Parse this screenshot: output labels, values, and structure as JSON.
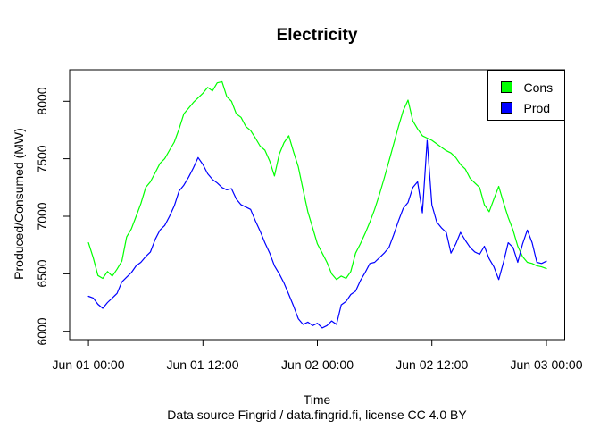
{
  "figure": {
    "title": "Electricity",
    "xlabel": "Time",
    "ylabel": "Produced/Consumed (MW)",
    "caption": "Data source Fingrid / data.fingrid.fi, license CC 4.0 BY"
  },
  "legend": {
    "position": "topright",
    "items": [
      {
        "label": "Cons",
        "color": "#00FF00"
      },
      {
        "label": "Prod",
        "color": "#0000FF"
      }
    ]
  },
  "axes": {
    "x_ticks": [
      {
        "value": 0,
        "label": "Jun 01 00:00"
      },
      {
        "value": 12,
        "label": "Jun 01 12:00"
      },
      {
        "value": 24,
        "label": "Jun 02 00:00"
      },
      {
        "value": 36,
        "label": "Jun 02 12:00"
      },
      {
        "value": 48,
        "label": "Jun 03 00:00"
      }
    ],
    "y_ticks": [
      {
        "value": 6000,
        "label": "6000"
      },
      {
        "value": 6500,
        "label": "6500"
      },
      {
        "value": 7000,
        "label": "7000"
      },
      {
        "value": 7500,
        "label": "7500"
      },
      {
        "value": 8000,
        "label": "8000"
      }
    ]
  },
  "chart_data": {
    "type": "line",
    "title": "Electricity",
    "xlabel": "Time",
    "ylabel": "Produced/Consumed (MW)",
    "caption": "Data source Fingrid / data.fingrid.fi, license CC 4.0 BY",
    "x_unit": "hours since Jun 01 00:00",
    "grid": false,
    "legend_position": "topright",
    "xlim": [
      -1.97,
      49.92
    ],
    "ylim": [
      5928,
      8274
    ],
    "x_tick_values": [
      0,
      12,
      24,
      36,
      48
    ],
    "x_tick_labels": [
      "Jun 01 00:00",
      "Jun 01 12:00",
      "Jun 02 00:00",
      "Jun 02 12:00",
      "Jun 03 00:00"
    ],
    "y_tick_values": [
      6000,
      6500,
      7000,
      7500,
      8000
    ],
    "y_tick_labels": [
      "6000",
      "6500",
      "7000",
      "7500",
      "8000"
    ],
    "x": [
      0,
      0.5,
      1,
      1.5,
      2,
      2.5,
      3,
      3.5,
      4,
      4.5,
      5,
      5.5,
      6,
      6.5,
      7,
      7.5,
      8,
      8.5,
      9,
      9.5,
      10,
      10.5,
      11,
      11.5,
      12,
      12.5,
      13,
      13.5,
      14,
      14.5,
      15,
      15.5,
      16,
      16.5,
      17,
      17.5,
      18,
      18.5,
      19,
      19.5,
      20,
      20.5,
      21,
      21.5,
      22,
      22.5,
      23,
      23.5,
      24,
      24.5,
      25,
      25.5,
      26,
      26.5,
      27,
      27.5,
      28,
      28.5,
      29,
      29.5,
      30,
      30.5,
      31,
      31.5,
      32,
      32.5,
      33,
      33.5,
      34,
      34.5,
      35,
      35.5,
      36,
      36.5,
      37,
      37.5,
      38,
      38.5,
      39,
      39.5,
      40,
      40.5,
      41,
      41.5,
      42,
      42.5,
      43,
      43.5,
      44,
      44.5,
      45,
      45.5,
      46,
      46.5,
      47,
      47.5,
      48
    ],
    "series": [
      {
        "name": "Cons",
        "color": "#00FF00",
        "values": [
          6770,
          6640,
          6485,
          6460,
          6520,
          6480,
          6540,
          6610,
          6820,
          6890,
          7000,
          7110,
          7250,
          7300,
          7380,
          7460,
          7500,
          7575,
          7645,
          7760,
          7890,
          7940,
          7990,
          8030,
          8070,
          8120,
          8090,
          8160,
          8170,
          8040,
          8000,
          7890,
          7860,
          7780,
          7745,
          7680,
          7610,
          7575,
          7480,
          7350,
          7540,
          7640,
          7700,
          7560,
          7430,
          7230,
          7040,
          6900,
          6760,
          6680,
          6600,
          6500,
          6450,
          6480,
          6460,
          6520,
          6680,
          6760,
          6850,
          6950,
          7060,
          7190,
          7330,
          7480,
          7630,
          7780,
          7920,
          8010,
          7830,
          7760,
          7700,
          7680,
          7660,
          7630,
          7600,
          7570,
          7550,
          7510,
          7450,
          7410,
          7330,
          7290,
          7250,
          7100,
          7040,
          7150,
          7260,
          7120,
          6990,
          6880,
          6740,
          6650,
          6600,
          6590,
          6570,
          6560,
          6545
        ]
      },
      {
        "name": "Prod",
        "color": "#0000FF",
        "values": [
          6305,
          6290,
          6235,
          6200,
          6250,
          6290,
          6330,
          6430,
          6470,
          6510,
          6570,
          6600,
          6650,
          6690,
          6800,
          6880,
          6920,
          7000,
          7090,
          7220,
          7270,
          7340,
          7420,
          7510,
          7450,
          7370,
          7320,
          7290,
          7250,
          7230,
          7240,
          7150,
          7100,
          7080,
          7060,
          6960,
          6870,
          6770,
          6680,
          6570,
          6500,
          6420,
          6320,
          6220,
          6110,
          6060,
          6080,
          6050,
          6070,
          6030,
          6050,
          6090,
          6060,
          6230,
          6260,
          6320,
          6350,
          6440,
          6510,
          6590,
          6600,
          6640,
          6680,
          6730,
          6840,
          6960,
          7070,
          7120,
          7250,
          7300,
          7030,
          7660,
          7100,
          6950,
          6900,
          6860,
          6680,
          6760,
          6860,
          6790,
          6730,
          6690,
          6670,
          6740,
          6630,
          6560,
          6450,
          6600,
          6770,
          6730,
          6600,
          6760,
          6880,
          6770,
          6600,
          6590,
          6610
        ]
      }
    ]
  }
}
